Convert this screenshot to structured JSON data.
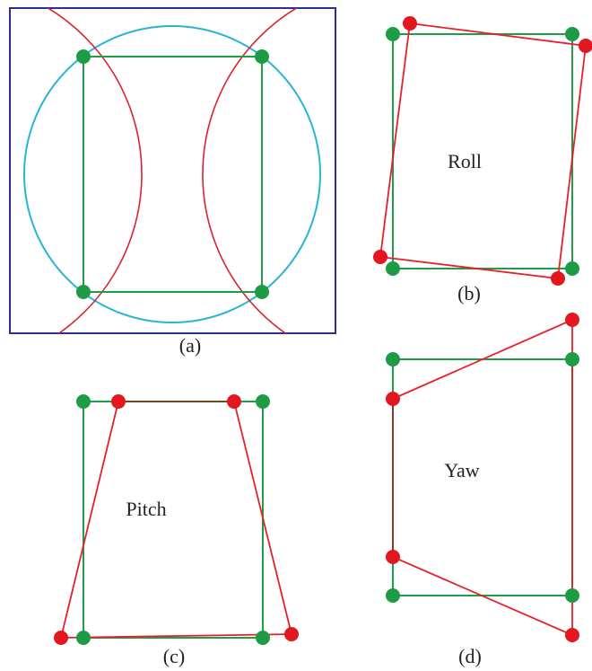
{
  "panels": {
    "a": {
      "caption": "(a)"
    },
    "b": {
      "caption": "(b)",
      "label": "Roll"
    },
    "c": {
      "caption": "(c)",
      "label": "Pitch"
    },
    "d": {
      "caption": "(d)",
      "label": "Yaw"
    }
  },
  "colors": {
    "frame": "#2b2f8f",
    "reference": "#1f9e4a",
    "transformed": "#e5202b",
    "circle": "#27b4d6",
    "dot_green": "#1e9b45",
    "dot_red": "#e3171f"
  }
}
